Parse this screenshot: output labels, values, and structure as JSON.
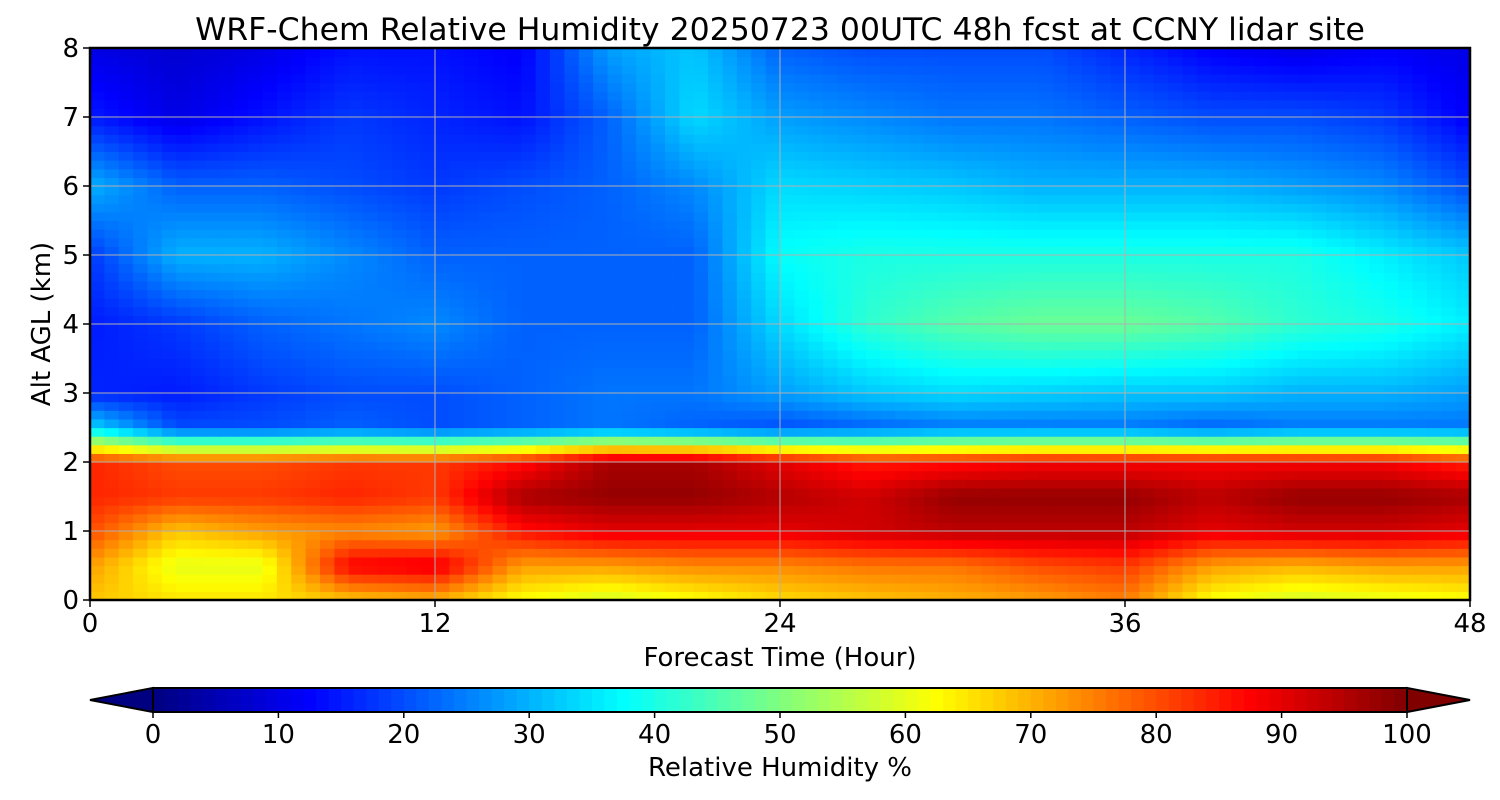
{
  "chart_data": {
    "type": "heatmap",
    "title": "WRF-Chem Relative Humidity 20250723 00UTC 48h fcst at CCNY lidar site",
    "xlabel": "Forecast Time (Hour)",
    "ylabel": "Alt AGL (km)",
    "xlim": [
      0,
      48
    ],
    "ylim": [
      0,
      8
    ],
    "x_ticks": [
      0,
      12,
      24,
      36,
      48
    ],
    "y_ticks": [
      0,
      1,
      2,
      3,
      4,
      5,
      6,
      7,
      8
    ],
    "grid": true,
    "colormap": "jet",
    "colorbar": {
      "label": "Relative Humidity %",
      "range": [
        0,
        100
      ],
      "ticks": [
        0,
        10,
        20,
        30,
        40,
        50,
        60,
        70,
        80,
        90,
        100
      ],
      "extend": "both",
      "orientation": "horizontal"
    },
    "x": [
      0,
      3,
      6,
      9,
      12,
      15,
      18,
      21,
      24,
      27,
      30,
      33,
      36,
      39,
      42,
      45,
      48
    ],
    "y": [
      0,
      0.5,
      1,
      1.5,
      2,
      2.5,
      3,
      4,
      5,
      6,
      7,
      8
    ],
    "z": [
      [
        68,
        65,
        65,
        68,
        70,
        62,
        58,
        62,
        66,
        68,
        70,
        72,
        75,
        62,
        58,
        60,
        62
      ],
      [
        72,
        60,
        60,
        88,
        90,
        72,
        72,
        74,
        74,
        76,
        76,
        80,
        82,
        72,
        70,
        72,
        72
      ],
      [
        80,
        68,
        72,
        74,
        72,
        86,
        90,
        90,
        90,
        92,
        94,
        94,
        94,
        90,
        92,
        92,
        90
      ],
      [
        84,
        82,
        82,
        84,
        82,
        96,
        98,
        98,
        95,
        92,
        98,
        98,
        98,
        94,
        98,
        98,
        96
      ],
      [
        84,
        80,
        80,
        82,
        82,
        86,
        96,
        96,
        90,
        85,
        86,
        88,
        88,
        88,
        88,
        88,
        84
      ],
      [
        34,
        20,
        20,
        22,
        20,
        22,
        24,
        22,
        20,
        22,
        24,
        24,
        24,
        22,
        24,
        24,
        24
      ],
      [
        16,
        15,
        18,
        20,
        20,
        22,
        24,
        24,
        28,
        32,
        34,
        33,
        32,
        32,
        30,
        30,
        28
      ],
      [
        15,
        18,
        22,
        24,
        26,
        22,
        22,
        22,
        34,
        42,
        46,
        48,
        48,
        46,
        42,
        40,
        36
      ],
      [
        18,
        30,
        30,
        26,
        22,
        22,
        22,
        22,
        38,
        40,
        40,
        40,
        40,
        40,
        40,
        36,
        32
      ],
      [
        30,
        22,
        22,
        20,
        18,
        20,
        22,
        26,
        34,
        33,
        32,
        30,
        30,
        30,
        28,
        26,
        20
      ],
      [
        15,
        10,
        14,
        18,
        16,
        14,
        22,
        34,
        28,
        26,
        24,
        24,
        22,
        20,
        20,
        18,
        12
      ],
      [
        10,
        8,
        10,
        14,
        14,
        12,
        28,
        32,
        22,
        20,
        20,
        20,
        16,
        12,
        10,
        12,
        10
      ]
    ]
  }
}
